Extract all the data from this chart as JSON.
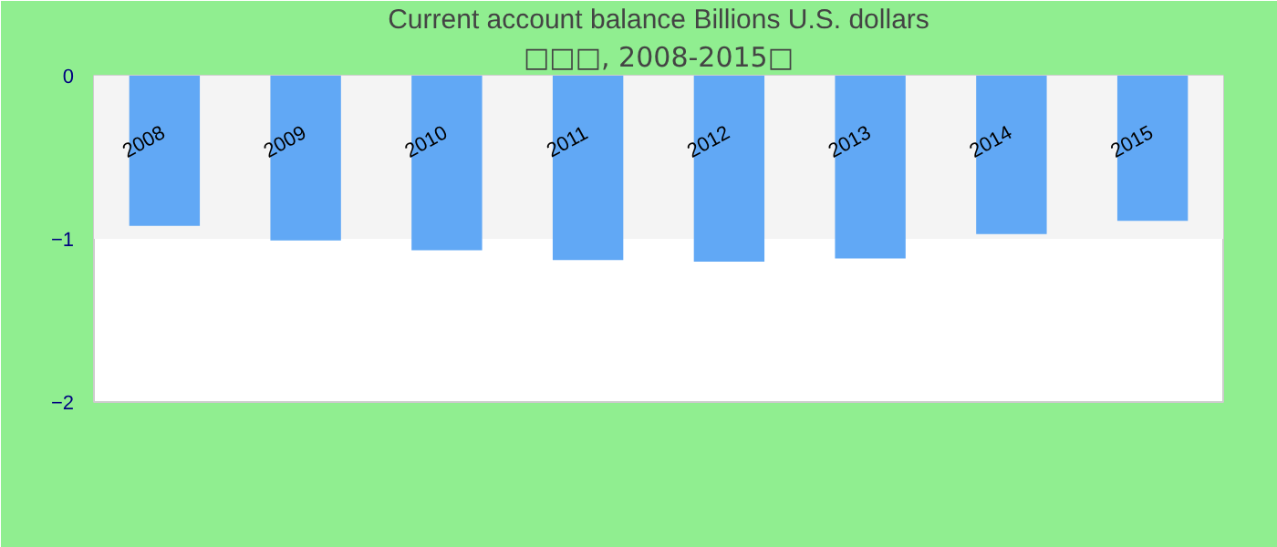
{
  "chart_data": {
    "type": "bar",
    "title": "Current account balance Billions U.S. dollars",
    "subtitle": "□□□, 2008-2015□",
    "categories": [
      "2008",
      "2009",
      "2010",
      "2011",
      "2012",
      "2013",
      "2014",
      "2015"
    ],
    "values": [
      -0.92,
      -1.01,
      -1.07,
      -1.13,
      -1.14,
      -1.12,
      -0.97,
      -0.89
    ],
    "color": "#61a8f5",
    "ylim": [
      -2,
      0
    ],
    "yticks": [
      -2,
      -1,
      0
    ],
    "grid": false,
    "bands": [
      {
        "axis": "y",
        "from": -1,
        "to": 0,
        "color": "#f4f4f4"
      }
    ]
  }
}
